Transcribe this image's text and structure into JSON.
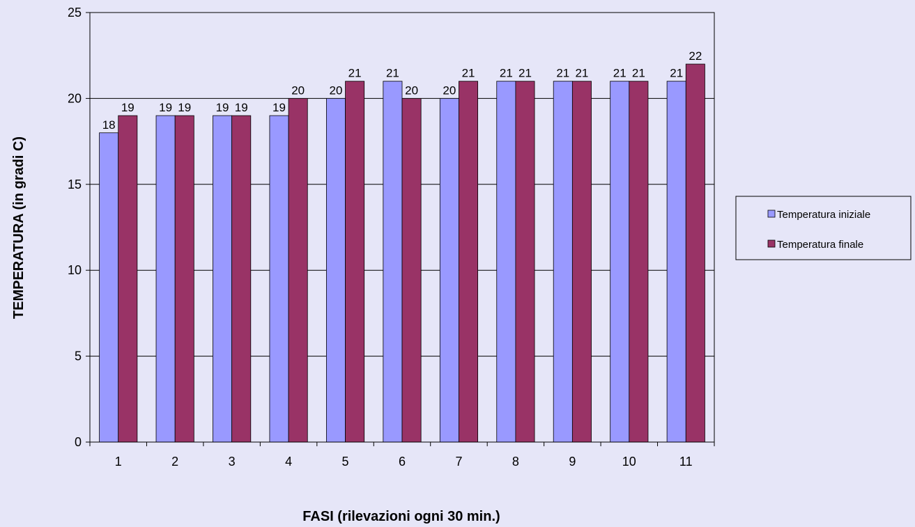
{
  "chart_data": {
    "type": "bar",
    "title": "",
    "xlabel": "FASI (rilevazioni ogni 30 min.)",
    "ylabel": "TEMPERATURA (in gradi C)",
    "ylim": [
      0,
      25
    ],
    "yticks": [
      0,
      5,
      10,
      15,
      20,
      25
    ],
    "grid": true,
    "legend_position": "right",
    "categories": [
      "1",
      "2",
      "3",
      "4",
      "5",
      "6",
      "7",
      "8",
      "9",
      "10",
      "11"
    ],
    "series": [
      {
        "name": "Temperatura iniziale",
        "color": "#9999ff",
        "values": [
          18,
          19,
          19,
          19,
          20,
          21,
          20,
          21,
          21,
          21,
          21
        ]
      },
      {
        "name": "Temperatura finale",
        "color": "#993366",
        "values": [
          19,
          19,
          19,
          20,
          21,
          20,
          21,
          21,
          21,
          21,
          22
        ]
      }
    ],
    "data_labels": true
  },
  "colors": {
    "background": "#e6e6f8",
    "plot_area": "#e6e6f8",
    "gridline": "#000000"
  }
}
